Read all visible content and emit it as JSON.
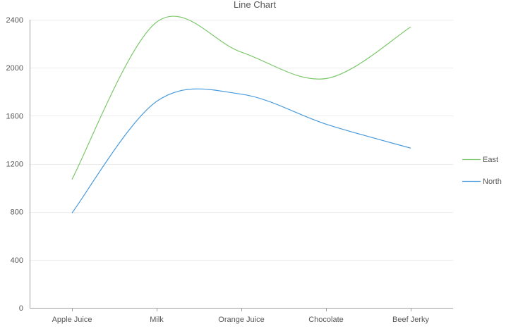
{
  "chart_data": {
    "type": "line",
    "title": "Line Chart",
    "xlabel": "",
    "ylabel": "",
    "categories": [
      "Apple Juice",
      "Milk",
      "Orange Juice",
      "Chocolate",
      "Beef Jerky"
    ],
    "ylim": [
      0,
      2400
    ],
    "yticks": [
      0,
      400,
      800,
      1200,
      1600,
      2000,
      2400
    ],
    "grid": true,
    "smooth": true,
    "legend_position": "right",
    "series": [
      {
        "name": "East",
        "color": "#7dc86c",
        "values": [
          1070,
          2380,
          2130,
          1910,
          2340
        ]
      },
      {
        "name": "North",
        "color": "#4a9bdc",
        "values": [
          790,
          1720,
          1780,
          1530,
          1330
        ]
      }
    ]
  }
}
